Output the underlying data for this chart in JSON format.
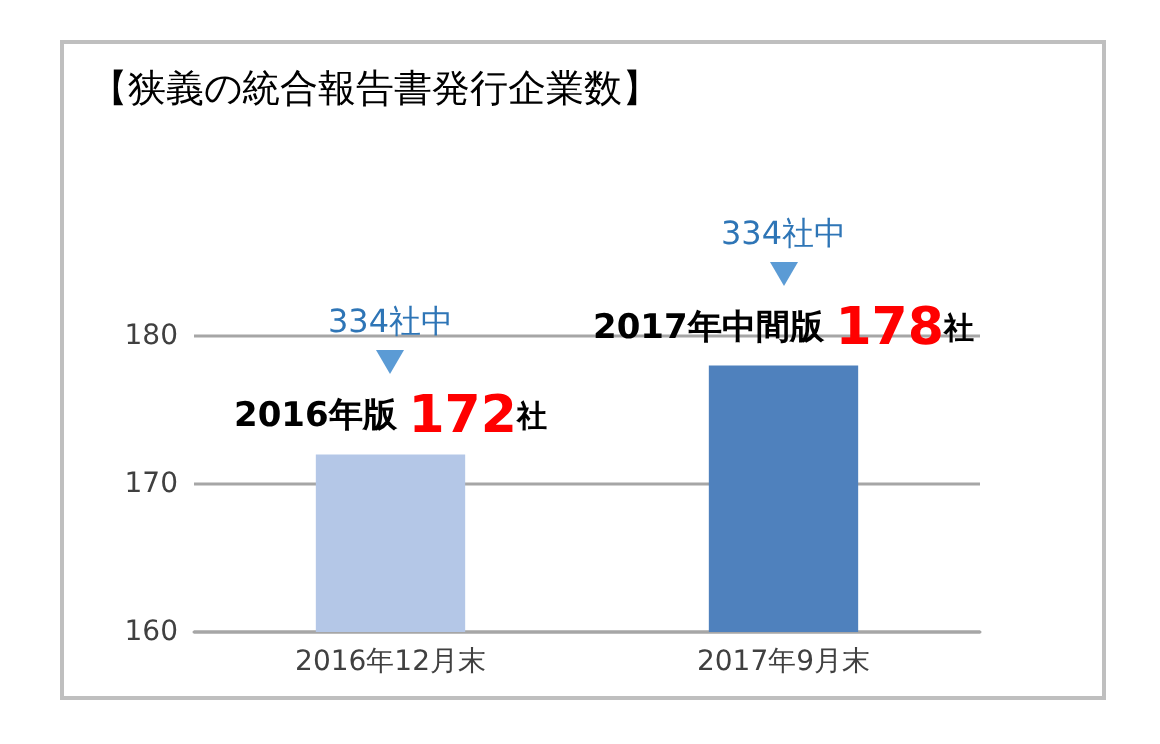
{
  "chart_data": {
    "type": "bar",
    "title": "【狭義の統合報告書発行企業数】",
    "categories": [
      "2016年12月末",
      "2017年9月末"
    ],
    "values": [
      172,
      178
    ],
    "colors": [
      "#b4c7e7",
      "#4f81bd"
    ],
    "value_labels": [
      "172社",
      "178社"
    ],
    "annotations": [
      "334社中",
      "2016年版",
      "334社中",
      "2017年中間版"
    ],
    "ylim": [
      160,
      180
    ],
    "yticks": [
      160,
      170,
      180
    ],
    "grid": "y"
  }
}
